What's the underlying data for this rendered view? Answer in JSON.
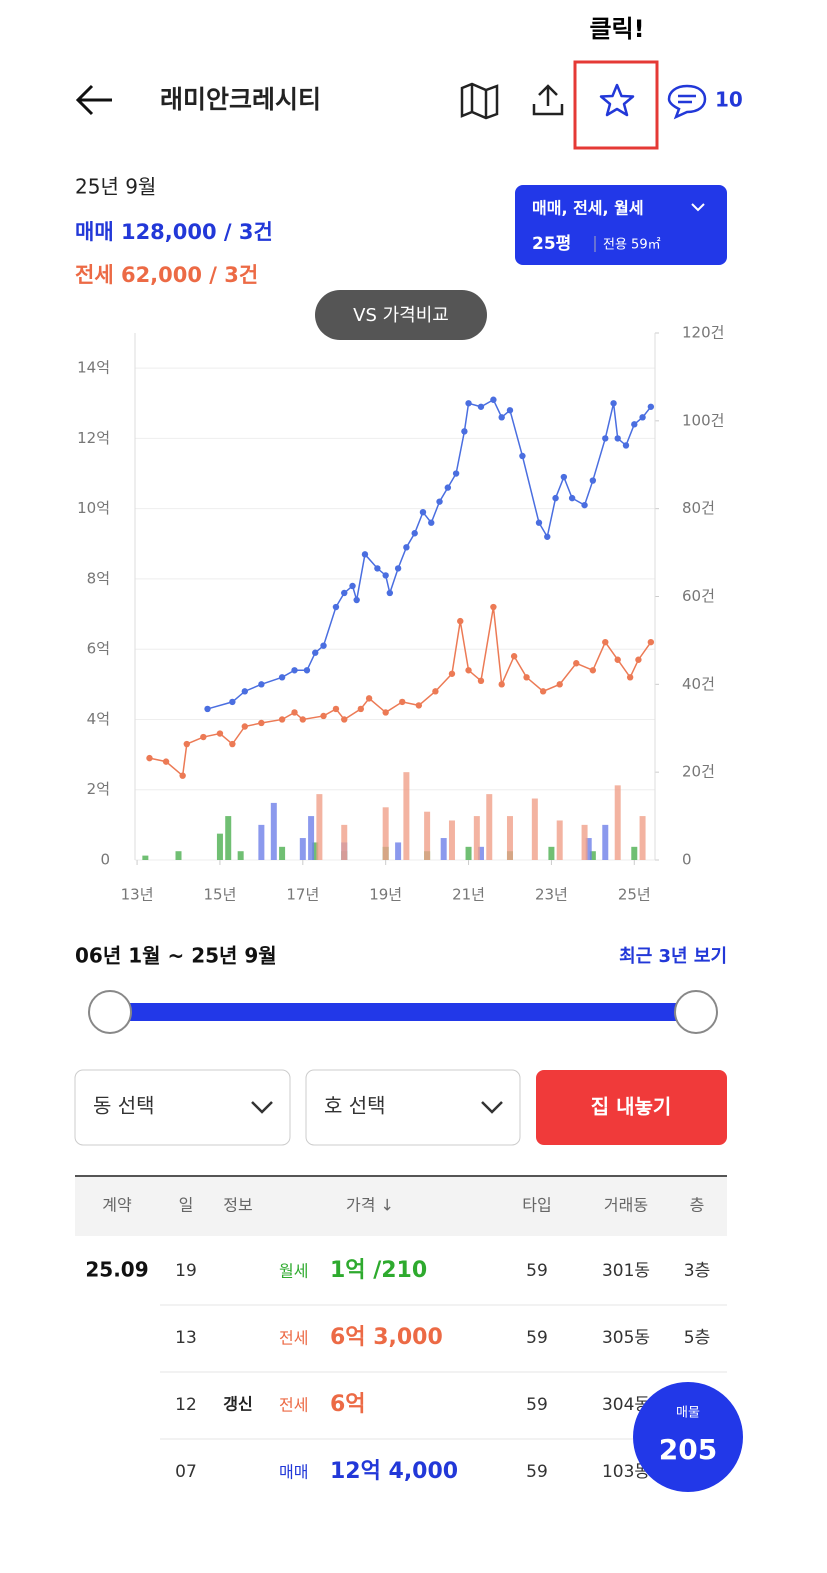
{
  "annotation": "클릭!",
  "header": {
    "title": "래미안크레시티",
    "comment_count": 10
  },
  "summary": {
    "date": "25년 9월",
    "sale": "매매 128,000 / 3건",
    "jeonse": "전세 62,000 / 3건"
  },
  "filter": {
    "types": "매매, 전세, 월세",
    "size": "25평",
    "area": "전용 59㎡"
  },
  "compare_button": "VS 가격비교",
  "chart": {
    "type": "line",
    "xlim": [
      12.95,
      25.5
    ],
    "xticks": [
      {
        "value": 13,
        "label": "13년"
      },
      {
        "value": 15,
        "label": "15년"
      },
      {
        "value": 17,
        "label": "17년"
      },
      {
        "value": 19,
        "label": "19년"
      },
      {
        "value": 21,
        "label": "21년"
      },
      {
        "value": 23,
        "label": "23년"
      },
      {
        "value": 25,
        "label": "25년"
      }
    ],
    "ylim": [
      0,
      15
    ],
    "yticks": [
      0,
      {
        "value": 2,
        "label": "2억"
      },
      {
        "value": 4,
        "label": "4억"
      },
      {
        "value": 6,
        "label": "6억"
      },
      {
        "value": 8,
        "label": "8억"
      },
      {
        "value": 10,
        "label": "10억"
      },
      {
        "value": 12,
        "label": "12억"
      },
      {
        "value": 14,
        "label": "14억"
      }
    ],
    "y2lim": [
      0,
      120
    ],
    "y2ticks": [
      0,
      {
        "value": 20,
        "label": "20건"
      },
      {
        "value": 40,
        "label": "40건"
      },
      {
        "value": 60,
        "label": "60건"
      },
      {
        "value": 80,
        "label": "80건"
      },
      {
        "value": 100,
        "label": "100건"
      },
      {
        "value": 120,
        "label": "120건"
      }
    ],
    "grid": true,
    "bar_series": [
      {
        "color": "#4caf50",
        "axis": "y2",
        "x": [
          13.2,
          14.0,
          15.0,
          15.2,
          15.5,
          16.5,
          17.3,
          18.0,
          19.0,
          20.0,
          21.0,
          22.0,
          23.0,
          24.0,
          25.0
        ],
        "values": [
          1,
          2,
          6,
          10,
          2,
          3,
          4,
          2,
          3,
          2,
          3,
          2,
          3,
          2,
          3
        ]
      },
      {
        "color": "#6e7fe8",
        "axis": "y2",
        "x": [
          16.0,
          16.3,
          17.0,
          17.2,
          18.0,
          19.3,
          20.4,
          21.3,
          23.9,
          24.3
        ],
        "values": [
          8,
          13,
          5,
          10,
          4,
          4,
          5,
          3,
          5,
          8
        ]
      },
      {
        "color": "#f0a08a",
        "axis": "y2",
        "x": [
          17.4,
          18.0,
          19.0,
          19.5,
          20.0,
          20.6,
          21.2,
          21.5,
          22.0,
          22.6,
          23.2,
          23.8,
          24.6,
          25.2
        ],
        "values": [
          15,
          8,
          12,
          20,
          11,
          9,
          10,
          15,
          10,
          14,
          9,
          8,
          17,
          10
        ]
      }
    ],
    "series": [
      {
        "color": "#4a6ee0",
        "x": [
          14.7,
          15.3,
          15.6,
          16.0,
          16.5,
          16.8,
          17.1,
          17.3,
          17.5,
          17.8,
          18.0,
          18.2,
          18.3,
          18.5,
          18.8,
          19.0,
          19.1,
          19.3,
          19.5,
          19.7,
          19.9,
          20.1,
          20.3,
          20.5,
          20.7,
          20.9,
          21.0,
          21.3,
          21.6,
          21.8,
          22.0,
          22.3,
          22.7,
          22.9,
          23.1,
          23.3,
          23.5,
          23.8,
          24.0,
          24.3,
          24.5,
          24.6,
          24.8,
          25.0,
          25.2,
          25.4
        ],
        "values": [
          4.3,
          4.5,
          4.8,
          5.0,
          5.2,
          5.4,
          5.4,
          5.9,
          6.1,
          7.2,
          7.6,
          7.8,
          7.4,
          8.7,
          8.3,
          8.1,
          7.6,
          8.3,
          8.9,
          9.3,
          9.9,
          9.6,
          10.2,
          10.6,
          11.0,
          12.2,
          13.0,
          12.9,
          13.1,
          12.6,
          12.8,
          11.5,
          9.6,
          9.2,
          10.3,
          10.9,
          10.3,
          10.1,
          10.8,
          12.0,
          13.0,
          12.0,
          11.8,
          12.4,
          12.6,
          12.9
        ]
      },
      {
        "color": "#ec7a55",
        "x": [
          13.3,
          13.7,
          14.1,
          14.2,
          14.6,
          15.0,
          15.3,
          15.6,
          16.0,
          16.5,
          16.8,
          17.0,
          17.5,
          17.8,
          18.0,
          18.4,
          18.6,
          19.0,
          19.4,
          19.8,
          20.2,
          20.6,
          20.8,
          21.0,
          21.3,
          21.6,
          21.8,
          22.1,
          22.4,
          22.8,
          23.2,
          23.6,
          24.0,
          24.3,
          24.6,
          24.9,
          25.1,
          25.4
        ],
        "values": [
          2.9,
          2.8,
          2.4,
          3.3,
          3.5,
          3.6,
          3.3,
          3.8,
          3.9,
          4.0,
          4.2,
          4.0,
          4.1,
          4.3,
          4.0,
          4.3,
          4.6,
          4.2,
          4.5,
          4.4,
          4.8,
          5.3,
          6.8,
          5.4,
          5.1,
          7.2,
          5.0,
          5.8,
          5.2,
          4.8,
          5.0,
          5.6,
          5.4,
          6.2,
          5.7,
          5.2,
          5.7,
          6.2
        ]
      }
    ]
  },
  "range": {
    "label": "06년 1월 ~ 25년 9월",
    "recent": "최근 3년 보기"
  },
  "selectors": [
    "동 선택",
    "호 선택"
  ],
  "list_button": "집 내놓기",
  "table": {
    "columns": [
      "계약",
      "일",
      "정보",
      "가격 ↓",
      "타입",
      "거래동",
      "층"
    ],
    "rows": [
      {
        "month": "25.09",
        "day": "19",
        "deal": "월세",
        "price": "1억 /210",
        "color": "#2eaa2e",
        "type": "59",
        "dong": "301동",
        "floor": "3층"
      },
      {
        "day": "13",
        "deal": "전세",
        "price": "6억 3,000",
        "color": "#ec6a45",
        "type": "59",
        "dong": "305동",
        "floor": "5층"
      },
      {
        "day": "12",
        "info": "갱신",
        "deal": "전세",
        "price": "6억",
        "color": "#ec6a45",
        "type": "59",
        "dong": "304동"
      },
      {
        "day": "07",
        "deal": "매매",
        "price": "12억 4,000",
        "color": "#2238d8",
        "type": "59",
        "dong": "103동"
      }
    ]
  },
  "fab": {
    "label": "매물",
    "count": 205
  }
}
